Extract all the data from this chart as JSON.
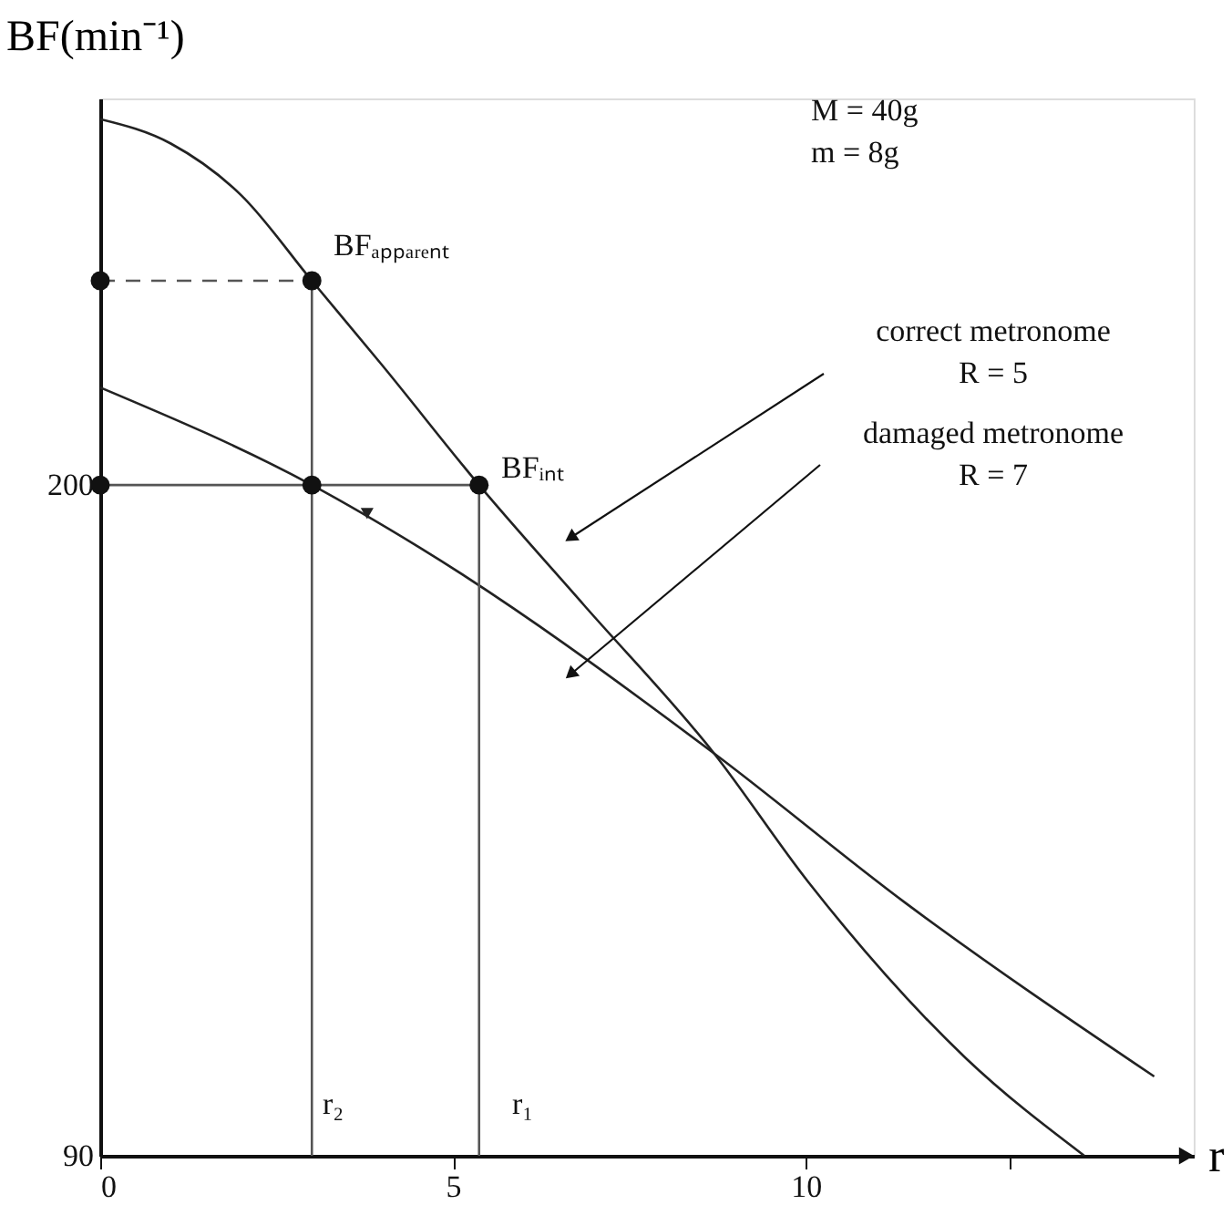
{
  "chart_data": {
    "type": "line",
    "xlabel": "r",
    "ylabel": "BF(min⁻¹)",
    "xlim": [
      0,
      15.5
    ],
    "ylim": [
      90,
      263.4
    ],
    "xticks": [
      0,
      5,
      10,
      {
        "value": 12.9,
        "label": null
      }
    ],
    "yticks": [
      90,
      200
    ],
    "series": [
      {
        "color": "#222222",
        "line_style": "solid",
        "x": [
          0,
          1,
          2,
          3,
          4,
          5.37,
          6.85,
          8.7,
          10.03,
          12.27,
          13.95
        ],
        "values": [
          260,
          256,
          247.5,
          233.5,
          219.6,
          200,
          180.4,
          156,
          135,
          106,
          90
        ]
      },
      {
        "color": "#222222",
        "line_style": "solid",
        "x": [
          0,
          3,
          4.52,
          8.7,
          11.41,
          14.94
        ],
        "values": [
          216,
          200,
          189.8,
          156,
          131.5,
          103
        ]
      },
      {
        "color": "#555555",
        "line_style": "dashed",
        "x": [
          0,
          3
        ],
        "values": [
          233.5,
          233.5
        ]
      },
      {
        "color": "#555555",
        "line_style": "solid",
        "x": [
          0,
          3,
          5.37
        ],
        "values": [
          200,
          200,
          200
        ]
      },
      {
        "color": "#555555",
        "line_style": "solid",
        "x": [
          3,
          3
        ],
        "values": [
          90,
          233.5
        ]
      },
      {
        "color": "#555555",
        "line_style": "solid",
        "x": [
          5.37,
          5.37
        ],
        "values": [
          90,
          200
        ]
      },
      {
        "type": "scatter",
        "marker": "circle",
        "color": "#111111",
        "x": [
          0,
          3,
          0,
          3,
          5.37
        ],
        "values": [
          233.5,
          233.5,
          200,
          200,
          200
        ]
      }
    ],
    "annotations": [
      "M = 40g",
      "m =  8g",
      "BFₐₚₚₐᵣₑₙₜ",
      "BFᵢₙₜ",
      "r₂",
      "r₁",
      "correct metronome\nR = 5",
      "damaged metronome\nR = 7"
    ]
  }
}
